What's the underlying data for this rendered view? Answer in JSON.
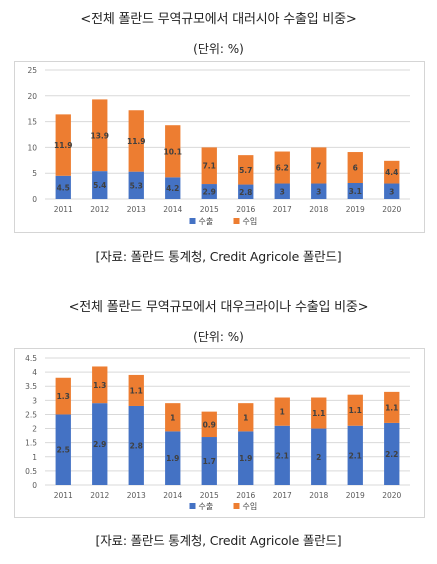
{
  "charts_meta": [
    {
      "title": "<전체 폴란드 무역규모에서 대러시아 수출입 비중>",
      "unit": "(단위: %)",
      "source": "[자료: 폴란드 통계청, Credit Agricole 폴란드]"
    },
    {
      "title": "<전체 폴란드 무역규모에서 대우크라이나 수출입 비중>",
      "unit": "(단위: %)",
      "source": "[자료: 폴란드 통계청, Credit Agricole 폴란드]"
    }
  ],
  "colors": {
    "export": "#4472c4",
    "import": "#ed7d31"
  },
  "chart_data": [
    {
      "type": "bar",
      "stacked": true,
      "categories": [
        "2011",
        "2012",
        "2013",
        "2014",
        "2015",
        "2016",
        "2017",
        "2018",
        "2019",
        "2020"
      ],
      "series": [
        {
          "name": "수출",
          "values": [
            4.5,
            5.4,
            5.3,
            4.2,
            2.9,
            2.8,
            3,
            3,
            3.1,
            3
          ],
          "labels": [
            "4.5",
            "5.4",
            "5.3",
            "4.2",
            "2.9",
            "2.8",
            "3",
            "3",
            "3.1",
            "3"
          ]
        },
        {
          "name": "수입",
          "values": [
            11.9,
            13.9,
            11.9,
            10.1,
            7.1,
            5.7,
            6.2,
            7,
            6,
            4.4
          ],
          "labels": [
            "11.9",
            "13.9",
            "11.9",
            "10.1",
            "7.1",
            "5.7",
            "6.2",
            "7",
            "6",
            "4.4"
          ]
        }
      ],
      "yticks": [
        "0",
        "5",
        "10",
        "15",
        "20",
        "25"
      ],
      "ylim": [
        0,
        25
      ],
      "legend": "bottom"
    },
    {
      "type": "bar",
      "stacked": true,
      "categories": [
        "2011",
        "2012",
        "2013",
        "2014",
        "2015",
        "2016",
        "2017",
        "2018",
        "2019",
        "2020"
      ],
      "series": [
        {
          "name": "수출",
          "values": [
            2.5,
            2.9,
            2.8,
            1.9,
            1.7,
            1.9,
            2.1,
            2,
            2.1,
            2.2
          ],
          "labels": [
            "2.5",
            "2.9",
            "2.8",
            "1.9",
            "1.7",
            "1.9",
            "2.1",
            "2",
            "2.1",
            "2.2"
          ]
        },
        {
          "name": "수입",
          "values": [
            1.3,
            1.3,
            1.1,
            1,
            0.9,
            1,
            1,
            1.1,
            1.1,
            1.1
          ],
          "labels": [
            "1.3",
            "1.3",
            "1.1",
            "1",
            "0.9",
            "1",
            "1",
            "1.1",
            "1.1",
            "1.1"
          ]
        }
      ],
      "yticks": [
        "0",
        "0.5",
        "1",
        "1.5",
        "2",
        "2.5",
        "3",
        "3.5",
        "4",
        "4.5"
      ],
      "ylim": [
        0,
        4.5
      ],
      "legend": "bottom"
    }
  ]
}
